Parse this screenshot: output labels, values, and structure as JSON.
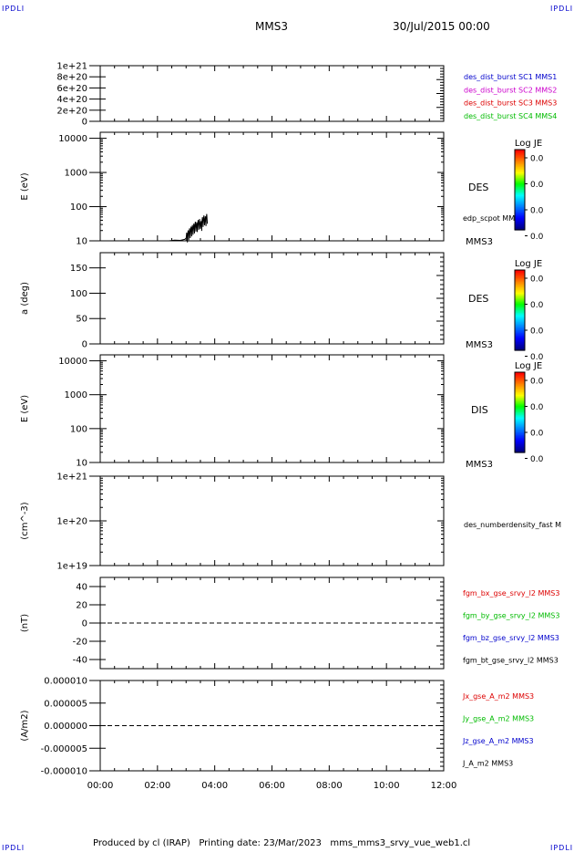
{
  "header": {
    "corner_tl": "IPDLI",
    "corner_tr": "IPDLI",
    "corner_bl": "IPDLI",
    "corner_br": "IPDLI",
    "title": "MMS3",
    "datetime": "30/Jul/2015 00:00"
  },
  "footer": {
    "text": "Produced by cl (IRAP)   Printing date: 23/Mar/2023   mms_mms3_srvy_vue_web1.cl"
  },
  "colors": {
    "blue": "#0000cc",
    "magenta": "#cc00cc",
    "red": "#dd0000",
    "green": "#00bb00",
    "black": "#000000"
  },
  "chart_data": [
    {
      "type": "line",
      "panel": 1,
      "yticks": [
        "1e+21",
        "8e+20",
        "6e+20",
        "4e+20",
        "2e+20",
        "0"
      ],
      "ylim": [
        0,
        1e+21
      ],
      "series": [
        {
          "name": "des_dist_burst SC1 MMS1",
          "color": "blue",
          "values": []
        },
        {
          "name": "des_dist_burst SC2 MMS2",
          "color": "magenta",
          "values": []
        },
        {
          "name": "des_dist_burst SC3 MMS3",
          "color": "red",
          "values": []
        },
        {
          "name": "des_dist_burst SC4 MMS4",
          "color": "green",
          "values": []
        }
      ],
      "zero_line": true
    },
    {
      "type": "heatmap",
      "panel": 2,
      "ylabel": "E (eV)",
      "yscale": "log",
      "ylim": [
        10,
        15000
      ],
      "yticks": [
        "10000",
        "1000",
        "100",
        "10"
      ],
      "label": "DES",
      "sublabel": "MMS3",
      "overlay_label": "edp_scpot MMS3",
      "colorbar": {
        "title": "Log JE",
        "ticks": [
          "0.0",
          "0.0",
          "0.0",
          "0.0"
        ]
      },
      "overlay": {
        "name": "edp_scpot MMS3",
        "x_hours": [
          2.4,
          2.6,
          2.8,
          2.95,
          3.0,
          3.05,
          3.1,
          3.15,
          3.2,
          3.25,
          3.3,
          3.35,
          3.4,
          3.45,
          3.5,
          3.55,
          3.6,
          3.65,
          3.7
        ],
        "y": [
          10,
          10.5,
          10.3,
          11,
          12,
          14,
          16,
          18,
          20,
          22,
          25,
          24,
          28,
          30,
          26,
          34,
          38,
          36,
          42
        ]
      }
    },
    {
      "type": "heatmap",
      "panel": 3,
      "ylabel": "a (deg)",
      "ylim": [
        0,
        180
      ],
      "yticks": [
        "150",
        "100",
        "50",
        "0"
      ],
      "label": "DES",
      "sublabel": "MMS3",
      "colorbar": {
        "title": "Log JE",
        "ticks": [
          "0.0",
          "0.0",
          "0.0",
          "0.0"
        ]
      }
    },
    {
      "type": "heatmap",
      "panel": 4,
      "ylabel": "E (eV)",
      "yscale": "log",
      "ylim": [
        10,
        15000
      ],
      "yticks": [
        "10000",
        "1000",
        "100",
        "10"
      ],
      "label": "DIS",
      "sublabel": "MMS3",
      "colorbar": {
        "title": "Log JE",
        "ticks": [
          "0.0",
          "0.0",
          "0.0",
          "0.0"
        ]
      }
    },
    {
      "type": "line",
      "panel": 5,
      "ylabel": "(cm^-3)",
      "yscale": "log",
      "ylim": [
        1e+19,
        1e+21
      ],
      "yticks": [
        "1e+21",
        "1e+20",
        "1e+19"
      ],
      "series": [
        {
          "name": "des_numberdensity_fast M",
          "color": "black",
          "values": []
        }
      ]
    },
    {
      "type": "line",
      "panel": 6,
      "ylabel": "(nT)",
      "ylim": [
        -50,
        50
      ],
      "yticks": [
        "40",
        "20",
        "0",
        "-20",
        "-40"
      ],
      "series": [
        {
          "name": "fgm_bx_gse_srvy_l2 MMS3",
          "color": "red",
          "values": []
        },
        {
          "name": "fgm_by_gse_srvy_l2 MMS3",
          "color": "green",
          "values": []
        },
        {
          "name": "fgm_bz_gse_srvy_l2 MMS3",
          "color": "blue",
          "values": []
        },
        {
          "name": "fgm_bt_gse_srvy_l2 MMS3",
          "color": "black",
          "values": []
        }
      ],
      "zero_line": true
    },
    {
      "type": "line",
      "panel": 7,
      "ylabel": "(A/m2)",
      "ylim": [
        -1e-05,
        1e-05
      ],
      "yticks": [
        "0.000010",
        "0.000005",
        "0.000000",
        "-0.000005",
        "-0.000010"
      ],
      "series": [
        {
          "name": "Jx_gse_A_m2 MMS3",
          "color": "red",
          "values": []
        },
        {
          "name": "Jy_gse_A_m2 MMS3",
          "color": "green",
          "values": []
        },
        {
          "name": "Jz_gse_A_m2 MMS3",
          "color": "blue",
          "values": []
        },
        {
          "name": "J_A_m2 MMS3",
          "color": "black",
          "values": []
        }
      ],
      "zero_line": true,
      "xticks": [
        "00:00",
        "02:00",
        "04:00",
        "06:00",
        "08:00",
        "10:00",
        "12:00"
      ],
      "xlim_hours": [
        0,
        12
      ]
    }
  ]
}
